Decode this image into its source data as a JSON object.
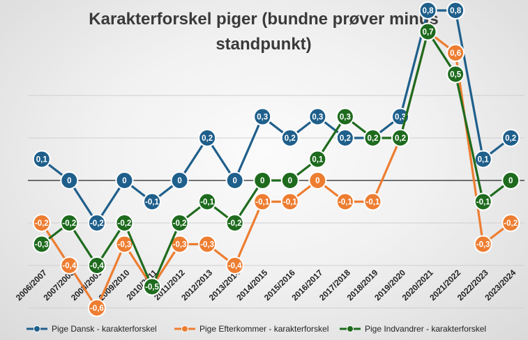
{
  "chart_data": {
    "type": "line",
    "title": "Karakterforskel piger (bundne prøver minus standpunkt)",
    "title_lines": [
      "Karakterforskel piger (bundne prøver minus",
      "standpunkt)"
    ],
    "categories": [
      "2006/2007",
      "2007/2008",
      "2008/2009",
      "2009/2010",
      "2010/2011",
      "2011/2012",
      "2012/2013",
      "2013/2014",
      "2014/2015",
      "2015/2016",
      "2016/2017",
      "2017/2018",
      "2018/2019",
      "2019/2020",
      "2020/2021",
      "2021/2022",
      "2022/2023",
      "2023/2024"
    ],
    "ylim": [
      -0.8,
      0.8
    ],
    "grid": true,
    "legend_position": "bottom",
    "series": [
      {
        "name": "Pige Dansk - karakterforskel",
        "color": "#1f5f8b",
        "values": [
          0.1,
          0,
          -0.2,
          0,
          -0.1,
          0,
          0.2,
          0,
          0.3,
          0.2,
          0.3,
          0.2,
          0.2,
          0.3,
          0.8,
          0.8,
          0.1,
          0.2
        ],
        "labels": [
          "0,1",
          "0",
          "-0,2",
          "0",
          "-0,1",
          "0",
          "0,2",
          "0",
          "0,3",
          "0,2",
          "0,3",
          "0,2",
          "0,2",
          "0,3",
          "0,8",
          "0,8",
          "0,1",
          "0,2"
        ]
      },
      {
        "name": "Pige Efterkommer  - karakterforskel",
        "color": "#ed7d31",
        "values": [
          -0.2,
          -0.4,
          -0.6,
          -0.3,
          -0.5,
          -0.3,
          -0.3,
          -0.4,
          -0.1,
          -0.1,
          0,
          -0.1,
          -0.1,
          0.2,
          0.7,
          0.6,
          -0.3,
          -0.2
        ],
        "labels": [
          "-0,2",
          "-0,4",
          "-0,6",
          "-0,3",
          "-0,5",
          "-0,3",
          "-0,3",
          "-0,4",
          "-0,1",
          "-0,1",
          "0",
          "-0,1",
          "-0,1",
          "0,2",
          "0,7",
          "0,6",
          "-0,3",
          "-0,2"
        ]
      },
      {
        "name": "Pige Indvandrer - karakterforskel",
        "color": "#1e6b1e",
        "values": [
          -0.3,
          -0.2,
          -0.4,
          -0.2,
          -0.5,
          -0.2,
          -0.1,
          -0.2,
          0,
          0,
          0.1,
          0.3,
          0.2,
          0.2,
          0.7,
          0.5,
          -0.1,
          0
        ],
        "labels": [
          "-0,3",
          "-0,2",
          "-0,4",
          "-0,2",
          "-0,5",
          "-0,2",
          "-0,1",
          "-0,2",
          "0",
          "0",
          "0,1",
          "0,3",
          "0,2",
          "0,2",
          "0,7",
          "0,5",
          "-0,1",
          "0"
        ]
      }
    ]
  }
}
